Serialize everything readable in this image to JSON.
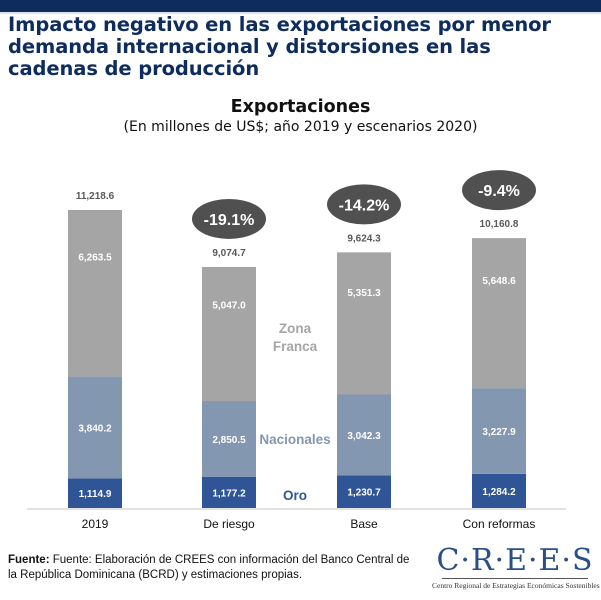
{
  "header": {
    "title": "Impacto negativo en las exportaciones por menor demanda internacional y distorsiones en las cadenas de producción",
    "title_lines": [
      "Impacto negativo en las exportaciones por menor",
      "demanda internacional y distorsiones en las",
      "cadenas de producción"
    ],
    "accent_color": "#0e2c5d"
  },
  "chart_data": {
    "type": "bar",
    "stacked": true,
    "title": "Exportaciones",
    "subtitle": "(En millones de US$; año 2019 y escenarios 2020)",
    "categories": [
      "2019",
      "De riesgo",
      "Base",
      "Con reformas"
    ],
    "series": [
      {
        "name": "Oro",
        "color": "#2f5597",
        "label_color": "#2f5597",
        "values": [
          1114.9,
          1177.2,
          1230.7,
          1284.2
        ],
        "labels": [
          "1,114.9",
          "1,177.2",
          "1,230.7",
          "1,284.2"
        ]
      },
      {
        "name": "Nacionales",
        "color": "#8497b0",
        "label_color": "#8497b0",
        "values": [
          3840.2,
          2850.5,
          3042.3,
          3227.9
        ],
        "labels": [
          "3,840.2",
          "2,850.5",
          "3,042.3",
          "3,227.9"
        ]
      },
      {
        "name": "Zona Franca",
        "color": "#a5a5a5",
        "label_color": "#a5a5a5",
        "values": [
          6263.5,
          5047.0,
          5351.3,
          5648.6
        ],
        "labels": [
          "6,263.5",
          "5,047.0",
          "5,351.3",
          "5,648.6"
        ]
      }
    ],
    "totals": [
      11218.6,
      9074.7,
      9624.3,
      10160.8
    ],
    "total_labels": [
      "11,218.6",
      "9,074.7",
      "9,624.3",
      "10,160.8"
    ],
    "annotations": [
      {
        "category": "De riesgo",
        "text": "-19.1%"
      },
      {
        "category": "Base",
        "text": "-14.2%"
      },
      {
        "category": "Con reformas",
        "text": "-9.4%"
      }
    ],
    "legend_labels": {
      "zona_franca_lines": [
        "Zona",
        "Franca"
      ],
      "nacionales": "Nacionales",
      "oro": "Oro"
    },
    "legend_placement": "inline-between-bars",
    "grid": false,
    "xlabel": "",
    "ylabel": "",
    "ylim": [
      0,
      11218.6
    ]
  },
  "footer": {
    "source_label": "Fuente:",
    "source_text": " Fuente: Elaboración de CREES con información del Banco Central de la República Dominicana (BCRD) y estimaciones propias.",
    "logo_text": "C·R·E·E·S",
    "logo_subtitle": "Centro Regional de Estrategias Económicas Sostenibles"
  }
}
